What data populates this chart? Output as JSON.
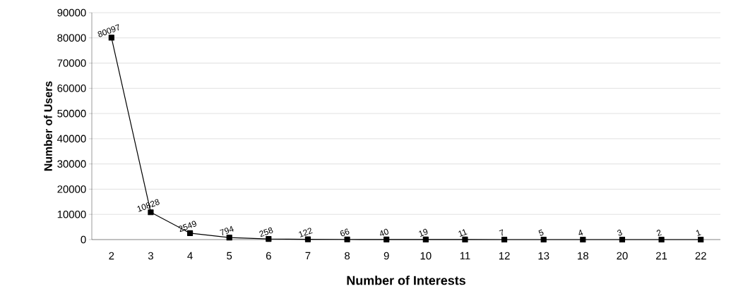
{
  "chart_data": {
    "type": "line",
    "xlabel": "Number of Interests",
    "ylabel": "Number of Users",
    "categories": [
      "2",
      "3",
      "4",
      "5",
      "6",
      "7",
      "8",
      "9",
      "10",
      "11",
      "12",
      "13",
      "18",
      "20",
      "21",
      "22"
    ],
    "values": [
      80097,
      10828,
      2549,
      794,
      258,
      122,
      66,
      40,
      19,
      11,
      7,
      5,
      4,
      3,
      2,
      1
    ],
    "color": "#000000",
    "marker": "square",
    "line_style": "solid",
    "data_labels": true,
    "ylim": [
      0,
      90000
    ],
    "yticks": [
      0,
      10000,
      20000,
      30000,
      40000,
      50000,
      60000,
      70000,
      80000,
      90000
    ],
    "grid": "y"
  }
}
